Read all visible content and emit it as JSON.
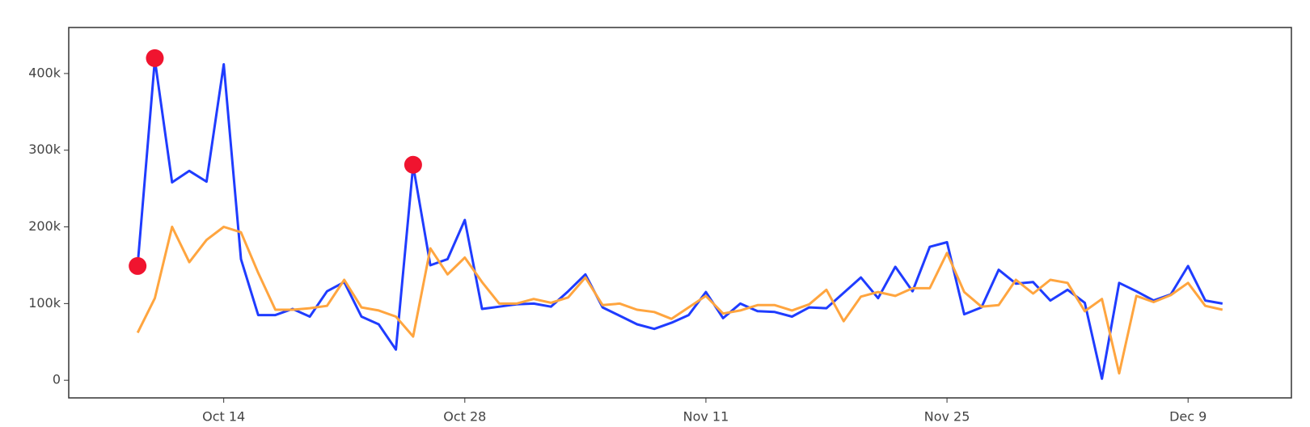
{
  "chart_data": {
    "type": "line",
    "x": [
      "Oct 9",
      "Oct 10",
      "Oct 11",
      "Oct 12",
      "Oct 13",
      "Oct 14",
      "Oct 15",
      "Oct 16",
      "Oct 17",
      "Oct 18",
      "Oct 19",
      "Oct 20",
      "Oct 21",
      "Oct 22",
      "Oct 23",
      "Oct 24",
      "Oct 25",
      "Oct 26",
      "Oct 27",
      "Oct 28",
      "Oct 29",
      "Oct 30",
      "Oct 31",
      "Nov 1",
      "Nov 2",
      "Nov 3",
      "Nov 4",
      "Nov 5",
      "Nov 6",
      "Nov 7",
      "Nov 8",
      "Nov 9",
      "Nov 10",
      "Nov 11",
      "Nov 12",
      "Nov 13",
      "Nov 14",
      "Nov 15",
      "Nov 16",
      "Nov 17",
      "Nov 18",
      "Nov 19",
      "Nov 20",
      "Nov 21",
      "Nov 22",
      "Nov 23",
      "Nov 24",
      "Nov 25",
      "Nov 26",
      "Nov 27",
      "Nov 28",
      "Nov 29",
      "Nov 30",
      "Dec 1",
      "Dec 2",
      "Dec 3",
      "Dec 4",
      "Dec 5",
      "Dec 6",
      "Dec 7",
      "Dec 8",
      "Dec 9",
      "Dec 10",
      "Dec 11"
    ],
    "series": [
      {
        "color": "#1f3cff",
        "values": [
          150000,
          418000,
          258000,
          273000,
          259000,
          412000,
          158000,
          85000,
          85000,
          93000,
          83000,
          116000,
          128000,
          83000,
          73000,
          40000,
          280000,
          150000,
          158000,
          209000,
          93000,
          96000,
          99000,
          100000,
          96000,
          116000,
          138000,
          95000,
          84000,
          73000,
          67000,
          75000,
          85000,
          115000,
          81000,
          100000,
          90000,
          89000,
          83000,
          95000,
          94000,
          114000,
          134000,
          107000,
          148000,
          116000,
          174000,
          180000,
          86000,
          95000,
          144000,
          126000,
          128000,
          104000,
          118000,
          101000,
          2000,
          127000,
          116000,
          104000,
          112000,
          149000,
          104000,
          100000
        ]
      },
      {
        "color": "#ffa53f",
        "values": [
          62000,
          107000,
          200000,
          154000,
          183000,
          200000,
          193000,
          140000,
          92000,
          92000,
          94000,
          97000,
          131000,
          95000,
          91000,
          83000,
          57000,
          172000,
          138000,
          160000,
          128000,
          100000,
          100000,
          106000,
          101000,
          108000,
          134000,
          98000,
          100000,
          92000,
          89000,
          80000,
          95000,
          110000,
          87000,
          91000,
          98000,
          98000,
          91000,
          99000,
          118000,
          77000,
          109000,
          115000,
          110000,
          120000,
          120000,
          166000,
          115000,
          96000,
          98000,
          131000,
          113000,
          131000,
          127000,
          90000,
          106000,
          9000,
          110000,
          102000,
          111000,
          127000,
          97000,
          92000
        ]
      }
    ],
    "anomalies": {
      "color": "#f0142f",
      "x": [
        "Oct 9",
        "Oct 10",
        "Oct 25"
      ],
      "values": [
        149000,
        420000,
        281000
      ]
    },
    "xlim": [
      "Oct 5",
      "Dec 15"
    ],
    "xticks": [
      "Oct 14",
      "Oct 28",
      "Nov 11",
      "Nov 25",
      "Dec 9"
    ],
    "ylim": [
      -23000,
      460000
    ],
    "yticks": [
      0,
      {
        "value": 100000,
        "label": "100k"
      },
      {
        "value": 200000,
        "label": "200k"
      },
      {
        "value": 300000,
        "label": "300k"
      },
      {
        "value": 400000,
        "label": "400k"
      }
    ],
    "grid": false
  }
}
